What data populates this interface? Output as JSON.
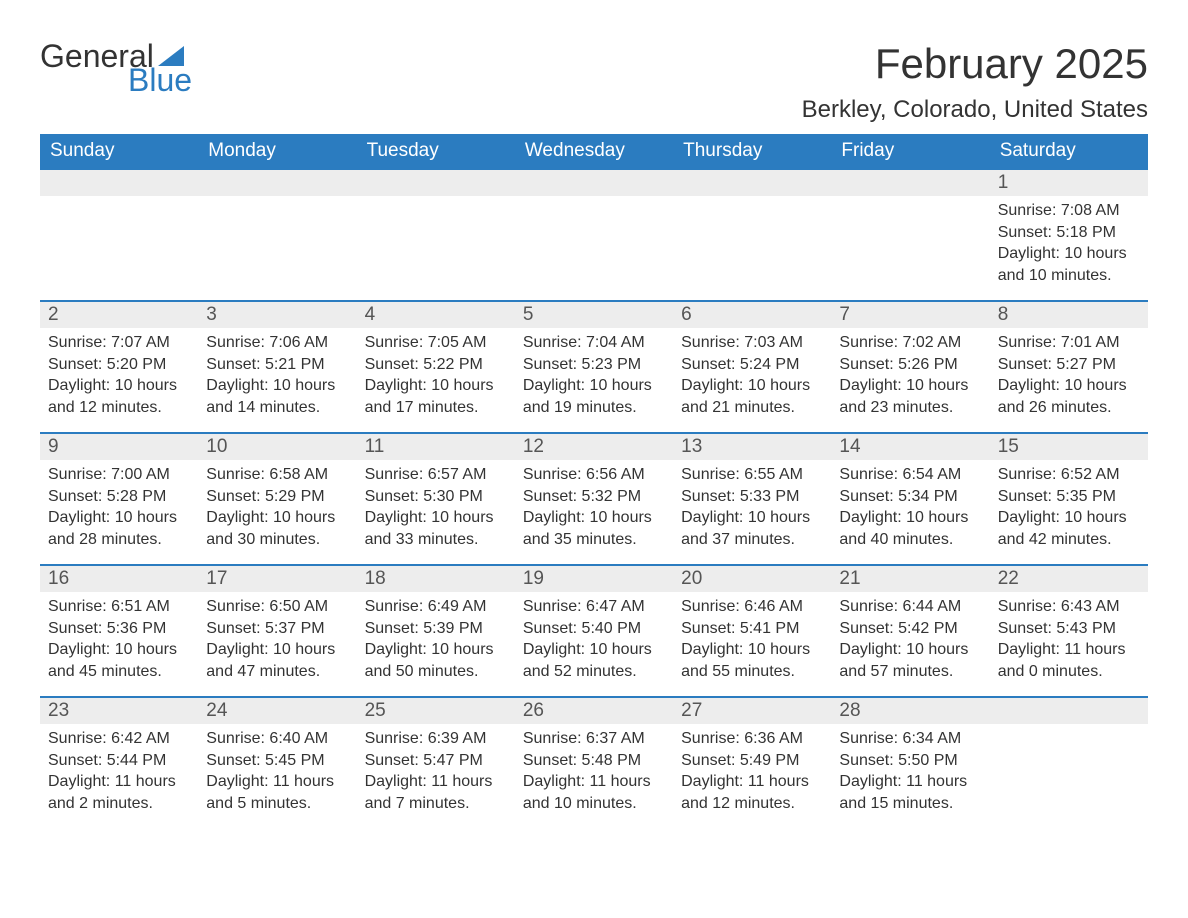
{
  "brand": {
    "word1": "General",
    "word2": "Blue",
    "sail_color": "#2b7cc0"
  },
  "title": "February 2025",
  "location": "Berkley, Colorado, United States",
  "colors": {
    "header_bg": "#2b7cc0",
    "header_text": "#ffffff",
    "daynum_bg": "#ededed",
    "border": "#2b7cc0",
    "text": "#333333"
  },
  "day_headers": [
    "Sunday",
    "Monday",
    "Tuesday",
    "Wednesday",
    "Thursday",
    "Friday",
    "Saturday"
  ],
  "weeks": [
    [
      null,
      null,
      null,
      null,
      null,
      null,
      {
        "n": "1",
        "sunrise": "Sunrise: 7:08 AM",
        "sunset": "Sunset: 5:18 PM",
        "daylight": "Daylight: 10 hours and 10 minutes."
      }
    ],
    [
      {
        "n": "2",
        "sunrise": "Sunrise: 7:07 AM",
        "sunset": "Sunset: 5:20 PM",
        "daylight": "Daylight: 10 hours and 12 minutes."
      },
      {
        "n": "3",
        "sunrise": "Sunrise: 7:06 AM",
        "sunset": "Sunset: 5:21 PM",
        "daylight": "Daylight: 10 hours and 14 minutes."
      },
      {
        "n": "4",
        "sunrise": "Sunrise: 7:05 AM",
        "sunset": "Sunset: 5:22 PM",
        "daylight": "Daylight: 10 hours and 17 minutes."
      },
      {
        "n": "5",
        "sunrise": "Sunrise: 7:04 AM",
        "sunset": "Sunset: 5:23 PM",
        "daylight": "Daylight: 10 hours and 19 minutes."
      },
      {
        "n": "6",
        "sunrise": "Sunrise: 7:03 AM",
        "sunset": "Sunset: 5:24 PM",
        "daylight": "Daylight: 10 hours and 21 minutes."
      },
      {
        "n": "7",
        "sunrise": "Sunrise: 7:02 AM",
        "sunset": "Sunset: 5:26 PM",
        "daylight": "Daylight: 10 hours and 23 minutes."
      },
      {
        "n": "8",
        "sunrise": "Sunrise: 7:01 AM",
        "sunset": "Sunset: 5:27 PM",
        "daylight": "Daylight: 10 hours and 26 minutes."
      }
    ],
    [
      {
        "n": "9",
        "sunrise": "Sunrise: 7:00 AM",
        "sunset": "Sunset: 5:28 PM",
        "daylight": "Daylight: 10 hours and 28 minutes."
      },
      {
        "n": "10",
        "sunrise": "Sunrise: 6:58 AM",
        "sunset": "Sunset: 5:29 PM",
        "daylight": "Daylight: 10 hours and 30 minutes."
      },
      {
        "n": "11",
        "sunrise": "Sunrise: 6:57 AM",
        "sunset": "Sunset: 5:30 PM",
        "daylight": "Daylight: 10 hours and 33 minutes."
      },
      {
        "n": "12",
        "sunrise": "Sunrise: 6:56 AM",
        "sunset": "Sunset: 5:32 PM",
        "daylight": "Daylight: 10 hours and 35 minutes."
      },
      {
        "n": "13",
        "sunrise": "Sunrise: 6:55 AM",
        "sunset": "Sunset: 5:33 PM",
        "daylight": "Daylight: 10 hours and 37 minutes."
      },
      {
        "n": "14",
        "sunrise": "Sunrise: 6:54 AM",
        "sunset": "Sunset: 5:34 PM",
        "daylight": "Daylight: 10 hours and 40 minutes."
      },
      {
        "n": "15",
        "sunrise": "Sunrise: 6:52 AM",
        "sunset": "Sunset: 5:35 PM",
        "daylight": "Daylight: 10 hours and 42 minutes."
      }
    ],
    [
      {
        "n": "16",
        "sunrise": "Sunrise: 6:51 AM",
        "sunset": "Sunset: 5:36 PM",
        "daylight": "Daylight: 10 hours and 45 minutes."
      },
      {
        "n": "17",
        "sunrise": "Sunrise: 6:50 AM",
        "sunset": "Sunset: 5:37 PM",
        "daylight": "Daylight: 10 hours and 47 minutes."
      },
      {
        "n": "18",
        "sunrise": "Sunrise: 6:49 AM",
        "sunset": "Sunset: 5:39 PM",
        "daylight": "Daylight: 10 hours and 50 minutes."
      },
      {
        "n": "19",
        "sunrise": "Sunrise: 6:47 AM",
        "sunset": "Sunset: 5:40 PM",
        "daylight": "Daylight: 10 hours and 52 minutes."
      },
      {
        "n": "20",
        "sunrise": "Sunrise: 6:46 AM",
        "sunset": "Sunset: 5:41 PM",
        "daylight": "Daylight: 10 hours and 55 minutes."
      },
      {
        "n": "21",
        "sunrise": "Sunrise: 6:44 AM",
        "sunset": "Sunset: 5:42 PM",
        "daylight": "Daylight: 10 hours and 57 minutes."
      },
      {
        "n": "22",
        "sunrise": "Sunrise: 6:43 AM",
        "sunset": "Sunset: 5:43 PM",
        "daylight": "Daylight: 11 hours and 0 minutes."
      }
    ],
    [
      {
        "n": "23",
        "sunrise": "Sunrise: 6:42 AM",
        "sunset": "Sunset: 5:44 PM",
        "daylight": "Daylight: 11 hours and 2 minutes."
      },
      {
        "n": "24",
        "sunrise": "Sunrise: 6:40 AM",
        "sunset": "Sunset: 5:45 PM",
        "daylight": "Daylight: 11 hours and 5 minutes."
      },
      {
        "n": "25",
        "sunrise": "Sunrise: 6:39 AM",
        "sunset": "Sunset: 5:47 PM",
        "daylight": "Daylight: 11 hours and 7 minutes."
      },
      {
        "n": "26",
        "sunrise": "Sunrise: 6:37 AM",
        "sunset": "Sunset: 5:48 PM",
        "daylight": "Daylight: 11 hours and 10 minutes."
      },
      {
        "n": "27",
        "sunrise": "Sunrise: 6:36 AM",
        "sunset": "Sunset: 5:49 PM",
        "daylight": "Daylight: 11 hours and 12 minutes."
      },
      {
        "n": "28",
        "sunrise": "Sunrise: 6:34 AM",
        "sunset": "Sunset: 5:50 PM",
        "daylight": "Daylight: 11 hours and 15 minutes."
      },
      null
    ]
  ]
}
